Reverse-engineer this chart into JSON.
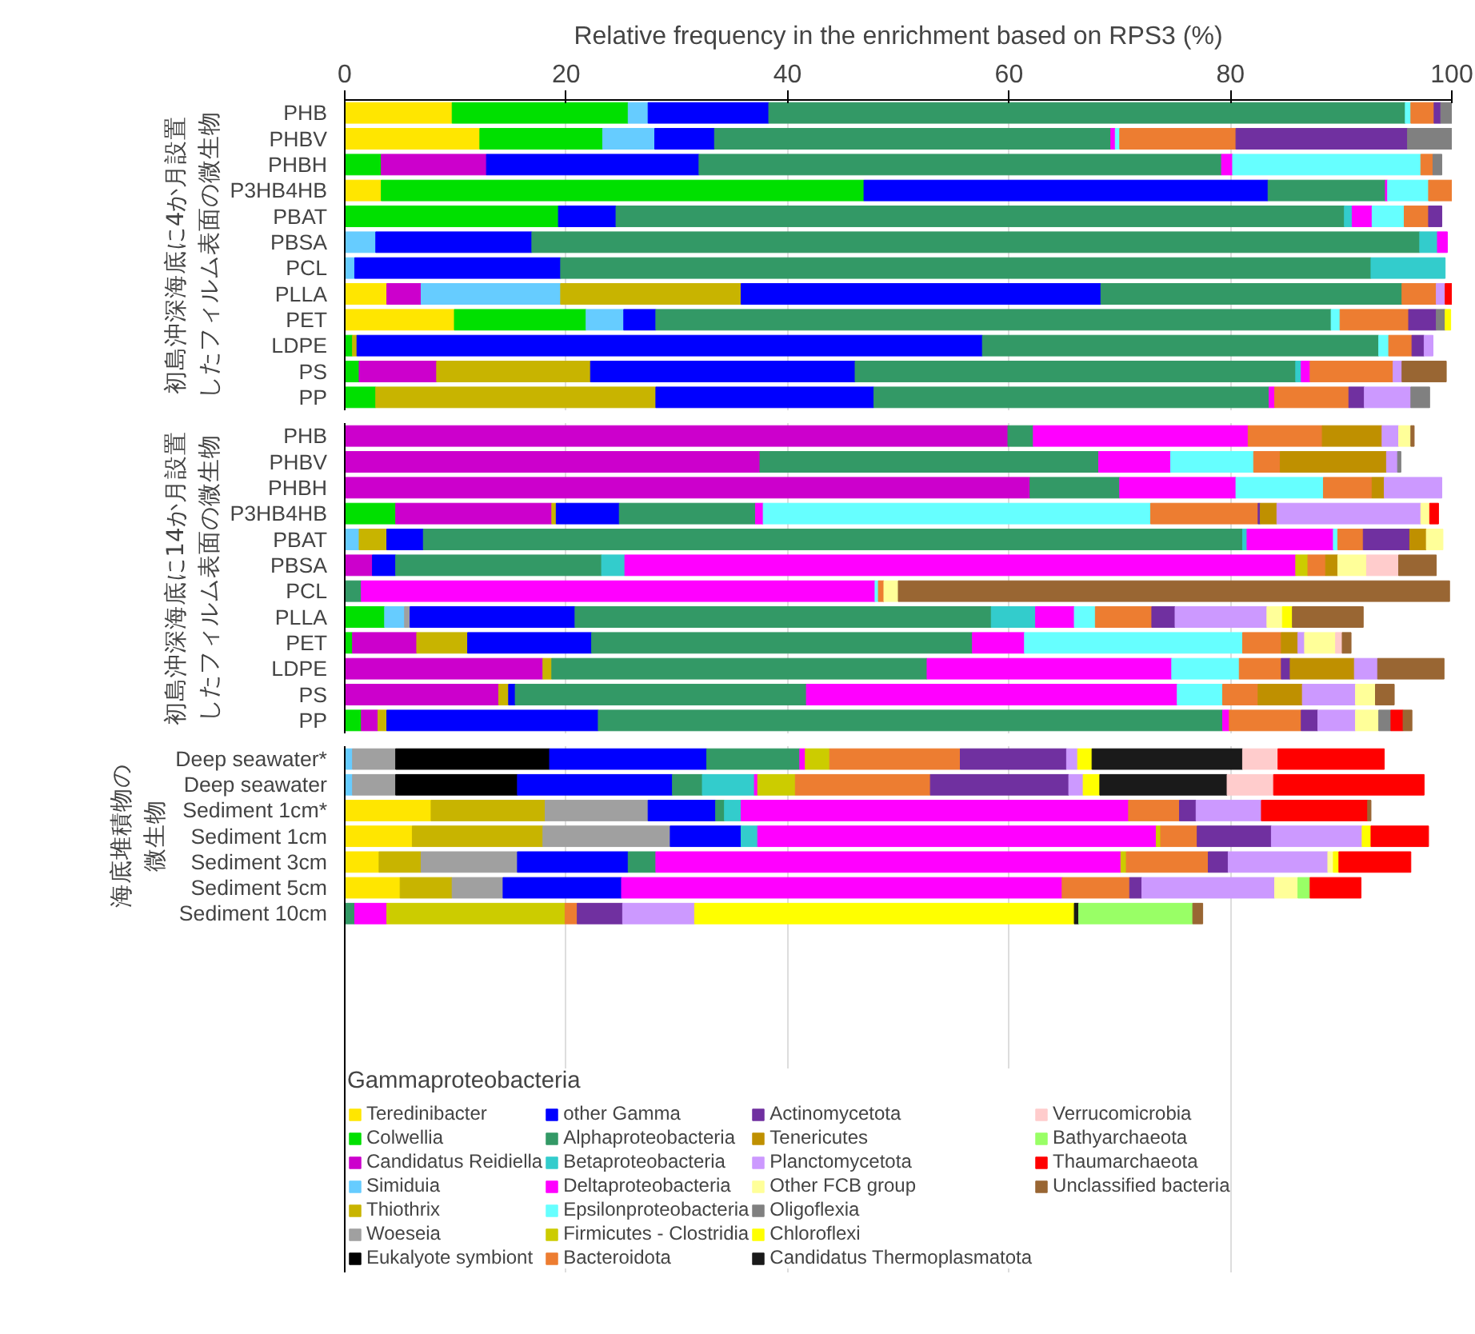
{
  "chart_data": [
    {
      "type": "bar",
      "orientation": "horizontal",
      "stacked": true,
      "xlabel": "Relative frequency in the enrichment based on RPS3 (%)",
      "xlim": [
        0,
        100
      ],
      "xticks": [
        0,
        20,
        40,
        60,
        80,
        100
      ],
      "grid": "x",
      "annotations": [
        "初島沖深海底に4か月設置",
        "したフィルム表面の微生物"
      ],
      "categories": [
        "PHB",
        "PHBV",
        "PHBH",
        "P3HB4HB",
        "PBAT",
        "PBSA",
        "PCL",
        "PLLA",
        "PET",
        "LDPE",
        "PS",
        "PP"
      ],
      "series": [
        {
          "color": "#ffe600",
          "values": [
            9.7,
            12.2,
            null,
            3.3,
            null,
            null,
            null,
            3.8,
            9.9,
            null,
            null,
            null
          ]
        },
        {
          "color": "#00e000",
          "values": [
            15.9,
            11.1,
            3.3,
            43.6,
            19.3,
            null,
            null,
            null,
            11.9,
            0.7,
            1.3,
            2.8
          ]
        },
        {
          "color": "#cc00cc",
          "values": [
            null,
            null,
            9.5,
            null,
            null,
            null,
            null,
            3.1,
            null,
            null,
            7.0,
            null
          ]
        },
        {
          "color": "#66ccff",
          "values": [
            1.8,
            4.7,
            null,
            null,
            null,
            2.8,
            0.9,
            12.6,
            3.4,
            null,
            null,
            null
          ]
        },
        {
          "color": "#c8b400",
          "values": [
            null,
            null,
            null,
            null,
            null,
            null,
            null,
            16.3,
            null,
            0.4,
            13.9,
            25.3
          ]
        },
        {
          "color": "#0000ff",
          "values": [
            10.9,
            5.4,
            19.2,
            36.5,
            5.2,
            14.1,
            18.6,
            32.5,
            2.9,
            56.5,
            23.9,
            19.7
          ]
        },
        {
          "color": "#339966",
          "values": [
            57.5,
            35.8,
            47.2,
            10.6,
            65.8,
            80.2,
            73.2,
            27.2,
            61.0,
            35.8,
            39.8,
            35.7
          ]
        },
        {
          "color": "#33cccc",
          "values": [
            null,
            null,
            null,
            null,
            0.7,
            1.6,
            6.7,
            null,
            null,
            null,
            0.5,
            null
          ]
        },
        {
          "color": "#ff00ff",
          "values": [
            null,
            0.4,
            1.0,
            0.2,
            1.8,
            0.9,
            null,
            null,
            null,
            null,
            0.8,
            0.5
          ]
        },
        {
          "color": "#66ffff",
          "values": [
            0.5,
            0.4,
            17.0,
            3.7,
            2.9,
            null,
            null,
            null,
            0.8,
            0.9,
            null,
            null
          ]
        },
        {
          "color": "#ed7d31",
          "values": [
            2.1,
            10.5,
            1.1,
            2.1,
            2.2,
            null,
            null,
            3.1,
            6.2,
            2.1,
            7.5,
            6.7
          ]
        },
        {
          "color": "#7030a0",
          "values": [
            0.6,
            15.5,
            null,
            null,
            1.2,
            null,
            null,
            null,
            2.5,
            1.1,
            null,
            1.4
          ]
        },
        {
          "color": "#cc99ff",
          "values": [
            null,
            null,
            null,
            null,
            null,
            null,
            null,
            0.8,
            null,
            0.8,
            0.8,
            4.2
          ]
        },
        {
          "color": "#808080",
          "values": [
            1.0,
            4.1,
            0.8,
            null,
            null,
            null,
            null,
            null,
            0.8,
            null,
            null,
            1.7
          ]
        },
        {
          "color": "#ffff00",
          "values": [
            null,
            null,
            null,
            null,
            null,
            null,
            null,
            null,
            0.5,
            null,
            null,
            null
          ]
        },
        {
          "color": "#ff0000",
          "values": [
            null,
            null,
            null,
            null,
            null,
            null,
            null,
            0.6,
            null,
            null,
            null,
            null
          ]
        },
        {
          "color": "#996633",
          "values": [
            null,
            null,
            null,
            null,
            null,
            null,
            null,
            null,
            null,
            null,
            4.0,
            null
          ]
        }
      ]
    },
    {
      "type": "bar",
      "orientation": "horizontal",
      "stacked": true,
      "xlim": [
        0,
        100
      ],
      "xticks": [
        0,
        20,
        40,
        60,
        80,
        100
      ],
      "grid": "x",
      "tick_labels": "y",
      "annotations": [
        "初島沖深海底に14か月設置",
        "したフィルム表面の微生物"
      ],
      "categories": [
        "PHB",
        "PHBV",
        "PHBH",
        "P3HB4HB",
        "PBAT",
        "PBSA",
        "PCL",
        "PLLA",
        "PET",
        "LDPE",
        "PS",
        "PP"
      ],
      "series": [
        {
          "color": "#00e000",
          "values": [
            null,
            null,
            null,
            4.6,
            null,
            null,
            null,
            3.6,
            0.7,
            null,
            null,
            1.5
          ]
        },
        {
          "color": "#cc00cc",
          "values": [
            59.9,
            37.5,
            61.9,
            14.1,
            null,
            2.5,
            null,
            null,
            5.8,
            17.9,
            13.9,
            1.5
          ]
        },
        {
          "color": "#66ccff",
          "values": [
            null,
            null,
            null,
            null,
            1.3,
            null,
            null,
            1.8,
            null,
            null,
            null,
            null
          ]
        },
        {
          "color": "#c8b400",
          "values": [
            null,
            null,
            null,
            0.4,
            2.5,
            null,
            null,
            null,
            4.6,
            0.8,
            0.9,
            0.8
          ]
        },
        {
          "color": "#a0a0a0",
          "values": [
            null,
            null,
            null,
            null,
            null,
            null,
            null,
            0.5,
            null,
            null,
            null,
            null
          ]
        },
        {
          "color": "#0000ff",
          "values": [
            null,
            null,
            null,
            5.7,
            3.3,
            2.1,
            null,
            14.9,
            11.2,
            null,
            0.6,
            19.1
          ]
        },
        {
          "color": "#339966",
          "values": [
            2.3,
            30.6,
            8.1,
            12.3,
            74.0,
            18.6,
            1.5,
            37.6,
            34.4,
            33.9,
            26.3,
            56.4
          ]
        },
        {
          "color": "#33cccc",
          "values": [
            null,
            null,
            null,
            null,
            0.4,
            2.1,
            null,
            4.0,
            null,
            null,
            null,
            null
          ]
        },
        {
          "color": "#ff00ff",
          "values": [
            19.4,
            6.5,
            10.5,
            0.7,
            7.8,
            60.6,
            46.4,
            3.5,
            4.7,
            22.1,
            33.5,
            0.6
          ]
        },
        {
          "color": "#66ffff",
          "values": [
            null,
            7.5,
            7.9,
            35.0,
            0.4,
            null,
            0.3,
            1.9,
            19.7,
            6.1,
            4.1,
            null
          ]
        },
        {
          "color": "#cccc00",
          "values": [
            null,
            null,
            null,
            null,
            null,
            1.1,
            null,
            null,
            null,
            null,
            null,
            null
          ]
        },
        {
          "color": "#ed7d31",
          "values": [
            6.7,
            2.4,
            4.4,
            9.7,
            2.3,
            1.6,
            0.5,
            5.1,
            3.5,
            3.8,
            3.2,
            6.5
          ]
        },
        {
          "color": "#7030a0",
          "values": [
            null,
            null,
            null,
            0.2,
            4.2,
            null,
            null,
            2.1,
            null,
            0.8,
            null,
            1.5
          ]
        },
        {
          "color": "#bf9000",
          "values": [
            5.4,
            9.6,
            1.1,
            1.5,
            1.5,
            1.1,
            null,
            null,
            1.5,
            5.8,
            4.0,
            null
          ]
        },
        {
          "color": "#cc99ff",
          "values": [
            1.5,
            1.0,
            5.2,
            13.0,
            null,
            null,
            null,
            8.3,
            0.6,
            2.1,
            4.8,
            3.4
          ]
        },
        {
          "color": "#ffff99",
          "values": [
            1.1,
            null,
            null,
            0.8,
            1.5,
            2.6,
            1.3,
            1.4,
            2.8,
            null,
            1.8,
            2.1
          ]
        },
        {
          "color": "#808080",
          "values": [
            null,
            0.3,
            null,
            null,
            null,
            null,
            null,
            null,
            null,
            null,
            null,
            1.1
          ]
        },
        {
          "color": "#ffff00",
          "values": [
            null,
            null,
            null,
            null,
            null,
            null,
            null,
            0.9,
            null,
            null,
            null,
            null
          ]
        },
        {
          "color": "#ffcccc",
          "values": [
            null,
            null,
            null,
            null,
            null,
            2.9,
            null,
            null,
            0.6,
            null,
            null,
            null
          ]
        },
        {
          "color": "#ff0000",
          "values": [
            null,
            null,
            null,
            0.8,
            null,
            null,
            null,
            null,
            null,
            null,
            null,
            1.1
          ]
        },
        {
          "color": "#996633",
          "values": [
            0.3,
            null,
            null,
            null,
            null,
            3.4,
            49.8,
            6.4,
            0.8,
            6.0,
            1.7,
            0.8
          ]
        }
      ]
    },
    {
      "type": "bar",
      "orientation": "horizontal",
      "stacked": true,
      "xlim": [
        0,
        100
      ],
      "xticks": [
        0,
        20,
        40,
        60,
        80,
        100
      ],
      "grid": "x",
      "tick_labels": "y",
      "legend": "bottom",
      "legend_title": "Gammaproteobacteria",
      "annotations": [
        "海底堆積物の",
        "微生物"
      ],
      "categories": [
        "Deep seawater*",
        "Deep seawater",
        "Sediment 1cm*",
        "Sediment 1cm",
        "Sediment 3cm",
        "Sediment 5cm",
        "Sediment 10cm"
      ],
      "series": [
        {
          "name": "Teredinibacter",
          "color": "#ffe600",
          "values": [
            null,
            null,
            7.8,
            6.1,
            3.1,
            5.0,
            null
          ]
        },
        {
          "name": "Colwellia",
          "color": "#00e000",
          "values": [
            null,
            null,
            null,
            null,
            null,
            null,
            null
          ]
        },
        {
          "name": "Candidatus Reidiella",
          "color": "#cc00cc",
          "values": [
            null,
            null,
            null,
            null,
            null,
            null,
            null
          ]
        },
        {
          "name": "Simiduia",
          "color": "#66ccff",
          "values": [
            0.7,
            0.7,
            null,
            null,
            null,
            null,
            null
          ]
        },
        {
          "name": "Thiothrix",
          "color": "#c8b400",
          "values": [
            null,
            null,
            10.3,
            11.8,
            3.8,
            4.7,
            null
          ]
        },
        {
          "name": "Woeseia",
          "color": "#a0a0a0",
          "values": [
            3.9,
            3.9,
            9.3,
            11.5,
            8.7,
            4.6,
            null
          ]
        },
        {
          "name": "Eukalyote symbiont",
          "color": "#000000",
          "values": [
            13.9,
            11.0,
            null,
            null,
            null,
            null,
            null
          ]
        },
        {
          "name": "other Gamma",
          "color": "#0000ff",
          "values": [
            14.2,
            14.0,
            6.1,
            6.4,
            10.0,
            10.7,
            null
          ]
        },
        {
          "name": "Alphaproteobacteria",
          "color": "#339966",
          "values": [
            8.4,
            2.7,
            0.8,
            null,
            2.5,
            null,
            0.9
          ]
        },
        {
          "name": "Betaproteobacteria",
          "color": "#33cccc",
          "values": [
            null,
            4.7,
            1.5,
            1.5,
            null,
            null,
            null
          ]
        },
        {
          "name": "Deltaproteobacteria",
          "color": "#ff00ff",
          "values": [
            0.5,
            0.3,
            35.0,
            36.0,
            42.0,
            39.8,
            2.9
          ]
        },
        {
          "name": "Epsilonproteobacteria",
          "color": "#66ffff",
          "values": [
            null,
            null,
            null,
            null,
            null,
            null,
            null
          ]
        },
        {
          "name": "Firmicutes - Clostridia",
          "color": "#cccc00",
          "values": [
            2.2,
            3.4,
            null,
            0.4,
            0.5,
            null,
            16.1
          ]
        },
        {
          "name": "Bacteroidota",
          "color": "#ed7d31",
          "values": [
            11.8,
            12.2,
            4.6,
            3.3,
            7.4,
            6.1,
            1.1
          ]
        },
        {
          "name": "Actinomycetota",
          "color": "#7030a0",
          "values": [
            9.6,
            12.5,
            1.5,
            6.7,
            1.8,
            1.1,
            4.1
          ]
        },
        {
          "name": "Tenericutes",
          "color": "#bf9000",
          "values": [
            null,
            null,
            null,
            null,
            null,
            null,
            null
          ]
        },
        {
          "name": "Planctomycetota",
          "color": "#cc99ff",
          "values": [
            1.0,
            1.3,
            5.9,
            8.2,
            9.0,
            12.0,
            6.5
          ]
        },
        {
          "name": "Other FCB group",
          "color": "#ffff99",
          "values": [
            null,
            null,
            null,
            null,
            0.5,
            2.1,
            null
          ]
        },
        {
          "name": "Oligoflexia",
          "color": "#808080",
          "values": [
            null,
            null,
            null,
            null,
            null,
            null,
            null
          ]
        },
        {
          "name": "Chloroflexi",
          "color": "#ffff00",
          "values": [
            1.3,
            1.5,
            null,
            0.8,
            0.5,
            null,
            34.3
          ]
        },
        {
          "name": "Candidatus Thermoplasmatota",
          "color": "#1a1a1a",
          "values": [
            13.6,
            11.5,
            null,
            null,
            null,
            null,
            0.4
          ]
        },
        {
          "name": "Verrucomicrobia",
          "color": "#ffcccc",
          "values": [
            3.2,
            4.2,
            null,
            null,
            null,
            null,
            null
          ]
        },
        {
          "name": "Bathyarchaeota",
          "color": "#99ff66",
          "values": [
            null,
            null,
            null,
            null,
            null,
            1.1,
            10.3
          ]
        },
        {
          "name": "Thaumarchaeota",
          "color": "#ff0000",
          "values": [
            9.6,
            13.6,
            9.6,
            5.2,
            6.5,
            4.6,
            null
          ]
        },
        {
          "name": "Unclassified bacteria",
          "color": "#996633",
          "values": [
            null,
            null,
            0.3,
            null,
            null,
            null,
            0.9
          ]
        }
      ]
    }
  ]
}
